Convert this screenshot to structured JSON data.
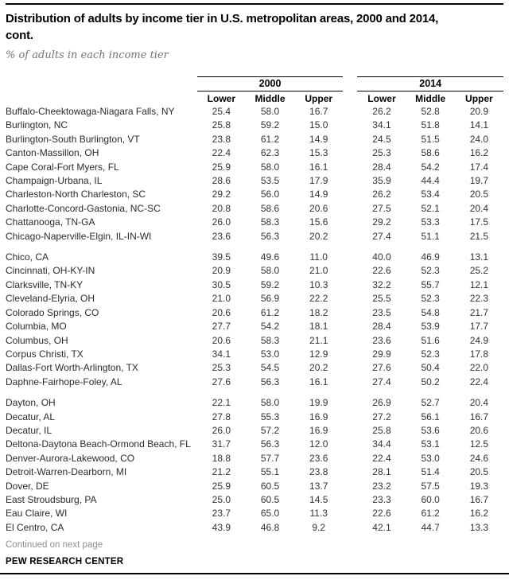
{
  "header": {
    "title_line1": "Distribution of adults by income tier in U.S. metropolitan areas, 2000 and 2014,",
    "title_line2": "cont.",
    "subtitle": "% of adults in each income tier"
  },
  "table": {
    "year_groups": [
      "2000",
      "2014"
    ],
    "sub_columns": [
      "Lower",
      "Middle",
      "Upper"
    ],
    "groups": [
      [
        {
          "name": "Buffalo-Cheektowaga-Niagara Falls, NY",
          "y2000": [
            "25.4",
            "58.0",
            "16.7"
          ],
          "y2014": [
            "26.2",
            "52.8",
            "20.9"
          ]
        },
        {
          "name": "Burlington, NC",
          "y2000": [
            "25.8",
            "59.2",
            "15.0"
          ],
          "y2014": [
            "34.1",
            "51.8",
            "14.1"
          ]
        },
        {
          "name": "Burlington-South Burlington, VT",
          "y2000": [
            "23.8",
            "61.2",
            "14.9"
          ],
          "y2014": [
            "24.5",
            "51.5",
            "24.0"
          ]
        },
        {
          "name": "Canton-Massillon, OH",
          "y2000": [
            "22.4",
            "62.3",
            "15.3"
          ],
          "y2014": [
            "25.3",
            "58.6",
            "16.2"
          ]
        },
        {
          "name": "Cape Coral-Fort Myers, FL",
          "y2000": [
            "25.9",
            "58.0",
            "16.1"
          ],
          "y2014": [
            "28.4",
            "54.2",
            "17.4"
          ]
        },
        {
          "name": "Champaign-Urbana, IL",
          "y2000": [
            "28.6",
            "53.5",
            "17.9"
          ],
          "y2014": [
            "35.9",
            "44.4",
            "19.7"
          ]
        },
        {
          "name": "Charleston-North Charleston, SC",
          "y2000": [
            "29.2",
            "56.0",
            "14.9"
          ],
          "y2014": [
            "26.2",
            "53.4",
            "20.5"
          ]
        },
        {
          "name": "Charlotte-Concord-Gastonia, NC-SC",
          "y2000": [
            "20.8",
            "58.6",
            "20.6"
          ],
          "y2014": [
            "27.5",
            "52.1",
            "20.4"
          ]
        },
        {
          "name": "Chattanooga, TN-GA",
          "y2000": [
            "26.0",
            "58.3",
            "15.6"
          ],
          "y2014": [
            "29.2",
            "53.3",
            "17.5"
          ]
        },
        {
          "name": "Chicago-Naperville-Elgin, IL-IN-WI",
          "y2000": [
            "23.6",
            "56.3",
            "20.2"
          ],
          "y2014": [
            "27.4",
            "51.1",
            "21.5"
          ]
        }
      ],
      [
        {
          "name": "Chico, CA",
          "y2000": [
            "39.5",
            "49.6",
            "11.0"
          ],
          "y2014": [
            "40.0",
            "46.9",
            "13.1"
          ]
        },
        {
          "name": "Cincinnati, OH-KY-IN",
          "y2000": [
            "20.9",
            "58.0",
            "21.0"
          ],
          "y2014": [
            "22.6",
            "52.3",
            "25.2"
          ]
        },
        {
          "name": "Clarksville, TN-KY",
          "y2000": [
            "30.5",
            "59.2",
            "10.3"
          ],
          "y2014": [
            "32.2",
            "55.7",
            "12.1"
          ]
        },
        {
          "name": "Cleveland-Elyria, OH",
          "y2000": [
            "21.0",
            "56.9",
            "22.2"
          ],
          "y2014": [
            "25.5",
            "52.3",
            "22.3"
          ]
        },
        {
          "name": "Colorado Springs, CO",
          "y2000": [
            "20.6",
            "61.2",
            "18.2"
          ],
          "y2014": [
            "23.5",
            "54.8",
            "21.7"
          ]
        },
        {
          "name": "Columbia, MO",
          "y2000": [
            "27.7",
            "54.2",
            "18.1"
          ],
          "y2014": [
            "28.4",
            "53.9",
            "17.7"
          ]
        },
        {
          "name": "Columbus, OH",
          "y2000": [
            "20.6",
            "58.3",
            "21.1"
          ],
          "y2014": [
            "23.6",
            "51.6",
            "24.9"
          ]
        },
        {
          "name": "Corpus Christi, TX",
          "y2000": [
            "34.1",
            "53.0",
            "12.9"
          ],
          "y2014": [
            "29.9",
            "52.3",
            "17.8"
          ]
        },
        {
          "name": "Dallas-Fort Worth-Arlington, TX",
          "y2000": [
            "25.3",
            "54.5",
            "20.2"
          ],
          "y2014": [
            "27.6",
            "50.4",
            "22.0"
          ]
        },
        {
          "name": "Daphne-Fairhope-Foley, AL",
          "y2000": [
            "27.6",
            "56.3",
            "16.1"
          ],
          "y2014": [
            "27.4",
            "50.2",
            "22.4"
          ]
        }
      ],
      [
        {
          "name": "Dayton, OH",
          "y2000": [
            "22.1",
            "58.0",
            "19.9"
          ],
          "y2014": [
            "26.9",
            "52.7",
            "20.4"
          ]
        },
        {
          "name": "Decatur, AL",
          "y2000": [
            "27.8",
            "55.3",
            "16.9"
          ],
          "y2014": [
            "27.2",
            "56.1",
            "16.7"
          ]
        },
        {
          "name": "Decatur, IL",
          "y2000": [
            "26.0",
            "57.2",
            "16.9"
          ],
          "y2014": [
            "25.8",
            "53.6",
            "20.6"
          ]
        },
        {
          "name": "Deltona-Daytona Beach-Ormond Beach, FL",
          "y2000": [
            "31.7",
            "56.3",
            "12.0"
          ],
          "y2014": [
            "34.4",
            "53.1",
            "12.5"
          ]
        },
        {
          "name": "Denver-Aurora-Lakewood, CO",
          "y2000": [
            "18.8",
            "57.7",
            "23.6"
          ],
          "y2014": [
            "22.4",
            "53.0",
            "24.6"
          ]
        },
        {
          "name": "Detroit-Warren-Dearborn, MI",
          "y2000": [
            "21.2",
            "55.1",
            "23.8"
          ],
          "y2014": [
            "28.1",
            "51.4",
            "20.5"
          ]
        },
        {
          "name": "Dover, DE",
          "y2000": [
            "25.9",
            "60.5",
            "13.7"
          ],
          "y2014": [
            "23.2",
            "57.5",
            "19.3"
          ]
        },
        {
          "name": "East Stroudsburg, PA",
          "y2000": [
            "25.0",
            "60.5",
            "14.5"
          ],
          "y2014": [
            "23.3",
            "60.0",
            "16.7"
          ]
        },
        {
          "name": "Eau Claire, WI",
          "y2000": [
            "23.7",
            "65.0",
            "11.3"
          ],
          "y2014": [
            "22.6",
            "61.2",
            "16.2"
          ]
        },
        {
          "name": "El Centro, CA",
          "y2000": [
            "43.9",
            "46.8",
            "9.2"
          ],
          "y2014": [
            "42.1",
            "44.7",
            "13.3"
          ]
        }
      ]
    ]
  },
  "footer": {
    "continued": "Continued on next page",
    "source": "PEW RESEARCH CENTER"
  },
  "colors": {
    "rule": "#000000",
    "title": "#000000",
    "subtitle_gray": "#737373",
    "body_text": "#2b2b2b",
    "continued_gray": "#909090"
  }
}
